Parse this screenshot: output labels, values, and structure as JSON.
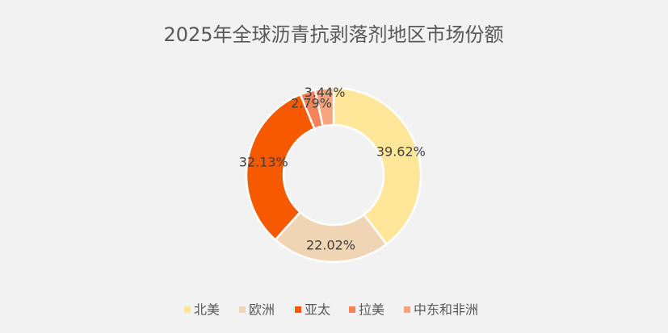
{
  "chart_data": {
    "type": "donut",
    "title": "2025年全球沥青抗剥落剂地区市场份额",
    "categories": [
      "北美",
      "欧洲",
      "亚太",
      "拉美",
      "中东和非洲"
    ],
    "values": [
      39.62,
      22.02,
      32.13,
      2.79,
      3.44
    ],
    "value_labels": [
      "39.62%",
      "22.02%",
      "32.13%",
      "2.79%",
      "3.44%"
    ],
    "colors": [
      "#FFE699",
      "#F0D5B4",
      "#F55A00",
      "#F4825A",
      "#F7A57E"
    ],
    "legend": "bottom"
  }
}
